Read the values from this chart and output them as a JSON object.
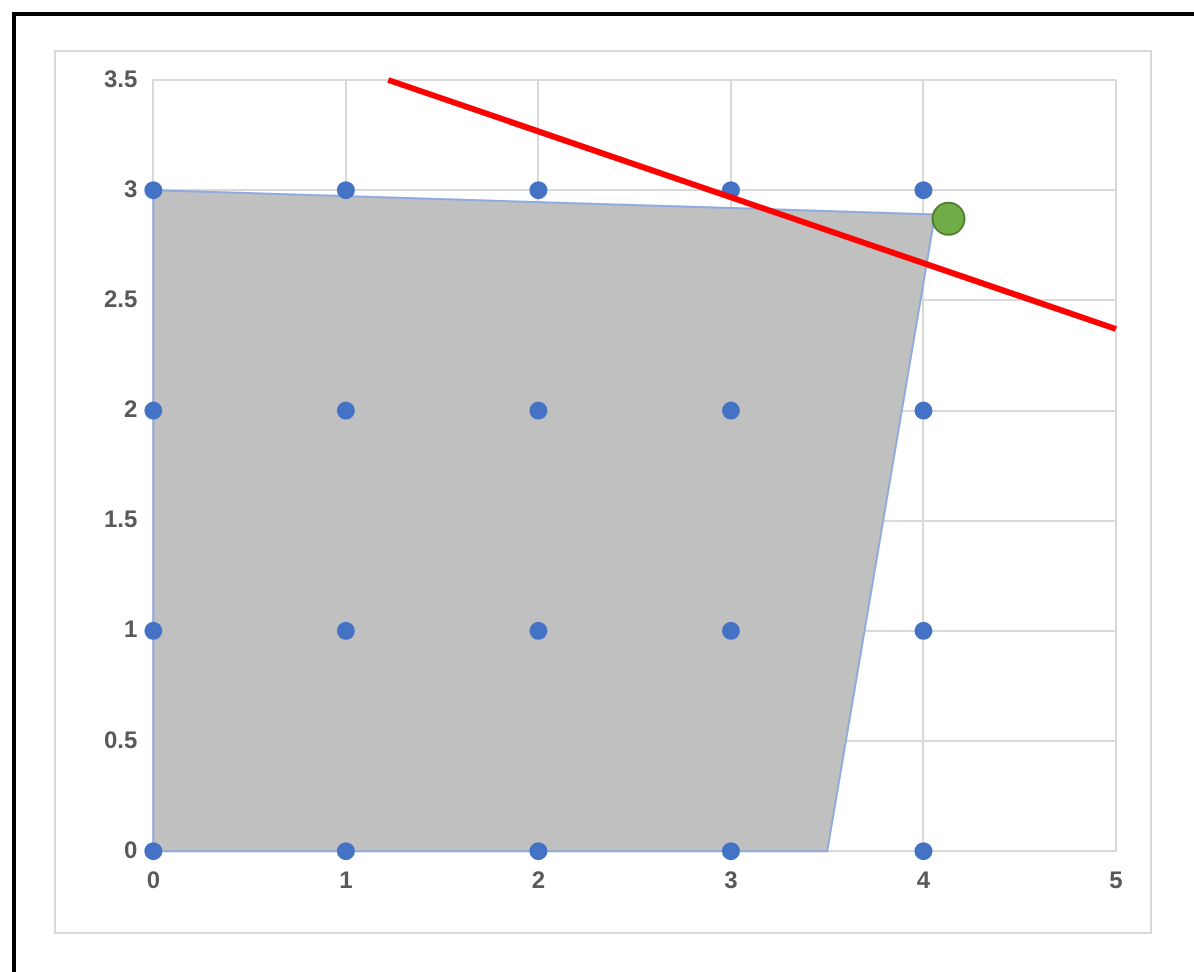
{
  "chart_data": {
    "type": "scatter",
    "xlim": [
      0,
      5
    ],
    "xticks": [
      0,
      1,
      2,
      3,
      4,
      5
    ],
    "ylim": [
      0,
      3.5
    ],
    "yticks": [
      0,
      0.5,
      1,
      1.5,
      2,
      2.5,
      3,
      3.5
    ],
    "grid": true,
    "legend": false,
    "series": [
      {
        "type": "area",
        "color": "#c0c0c0",
        "marker": "none",
        "x": [
          0,
          0,
          4.06,
          3.5,
          0
        ],
        "values": [
          0,
          3,
          2.89,
          0,
          0
        ]
      },
      {
        "color": "#4472c4",
        "marker": "circle",
        "x": [
          0,
          1,
          2,
          3,
          4,
          0,
          1,
          2,
          3,
          4,
          0,
          1,
          2,
          3,
          4,
          0,
          1,
          2,
          3,
          4
        ],
        "values": [
          0,
          0,
          0,
          0,
          0,
          1,
          1,
          1,
          1,
          1,
          2,
          2,
          2,
          2,
          2,
          3,
          3,
          3,
          3,
          3
        ]
      },
      {
        "type": "line",
        "color": "#ff0000",
        "marker": "none",
        "x": [
          1.22,
          5
        ],
        "values": [
          3.5,
          2.37
        ]
      },
      {
        "type": "bubble",
        "color": "#70ad47",
        "x": [
          4.13
        ],
        "values": [
          2.87
        ],
        "sizes": [
          1
        ]
      }
    ]
  }
}
